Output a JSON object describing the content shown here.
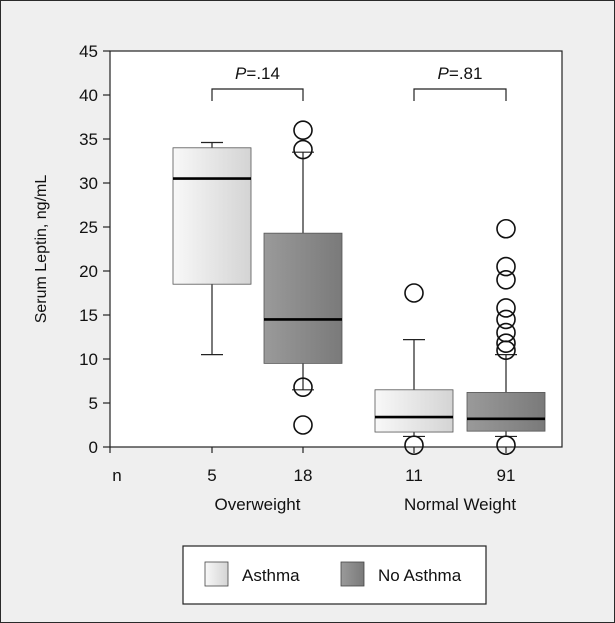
{
  "chart_data": {
    "type": "box",
    "ylabel": "Serum Leptin, ng/mL",
    "ylim": [
      0,
      45
    ],
    "yticks": [
      0,
      5,
      10,
      15,
      20,
      25,
      30,
      35,
      40,
      45
    ],
    "n_label": "n",
    "series": [
      {
        "name": "Asthma",
        "color": "#e6e6e6"
      },
      {
        "name": "No Asthma",
        "color": "#8c8c8c"
      }
    ],
    "groups": [
      {
        "label": "Overweight",
        "pvalue_prefix": "P",
        "pvalue_text": "=.14",
        "boxes": [
          {
            "series": "Asthma",
            "n": "5",
            "min": 10.5,
            "q1": 18.5,
            "median": 30.5,
            "q3": 34,
            "max": 34.6,
            "outliers": []
          },
          {
            "series": "No Asthma",
            "n": "18",
            "min": 6.5,
            "q1": 9.5,
            "median": 14.5,
            "q3": 24.3,
            "max": 33.5,
            "outliers": [
              36,
              33.8,
              6.8,
              2.5
            ]
          }
        ]
      },
      {
        "label": "Normal Weight",
        "pvalue_prefix": "P",
        "pvalue_text": "=.81",
        "boxes": [
          {
            "series": "Asthma",
            "n": "11",
            "min": 1.2,
            "q1": 1.7,
            "median": 3.4,
            "q3": 6.5,
            "max": 12.2,
            "outliers": [
              17.5,
              0.2
            ]
          },
          {
            "series": "No Asthma",
            "n": "91",
            "min": 1.2,
            "q1": 1.8,
            "median": 3.2,
            "q3": 6.2,
            "max": 10.5,
            "outliers": [
              24.8,
              20.5,
              19.0,
              15.8,
              14.5,
              13.0,
              11.8,
              11.0,
              0.2
            ]
          }
        ]
      }
    ],
    "legend": {
      "position": "bottom",
      "items": [
        "Asthma",
        "No Asthma"
      ]
    }
  }
}
